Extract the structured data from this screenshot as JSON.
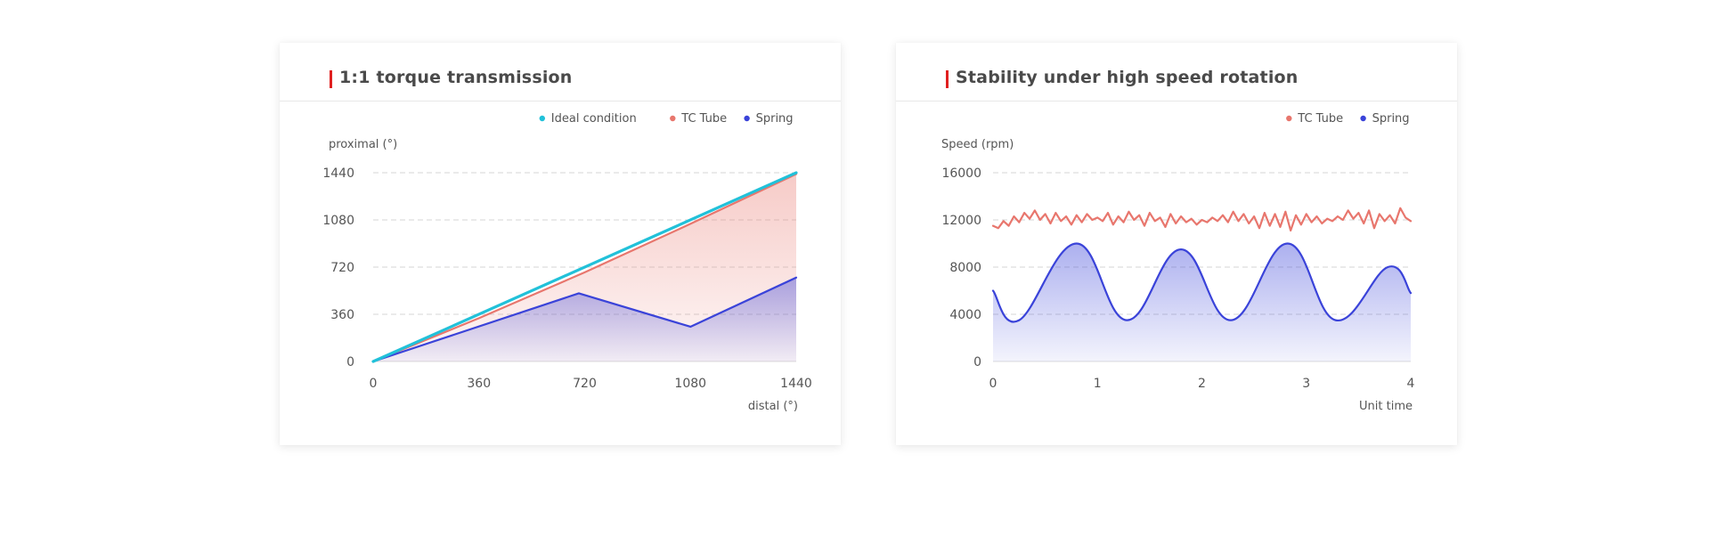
{
  "colors": {
    "cyan": "#21c1d9",
    "red": "#e8766d",
    "blue": "#3a43d9",
    "title_mark": "#e02020",
    "grid": "#d6d6d6",
    "text": "#555555"
  },
  "chart_data": [
    {
      "type": "area",
      "title": "1:1 torque transmission",
      "ylabel": "proximal  (°)",
      "xlabel": "distal  (°)",
      "xlim": [
        0,
        1440
      ],
      "ylim": [
        0,
        1440
      ],
      "x_ticks": [
        "0",
        "360",
        "720",
        "1080",
        "1440"
      ],
      "y_ticks": [
        "0",
        "360",
        "720",
        "1080",
        "1440"
      ],
      "legend": [
        "Ideal condition",
        "TC Tube",
        "Spring"
      ],
      "legend_position": "top-right",
      "grid": true,
      "series": [
        {
          "name": "Ideal condition",
          "color": "#21c1d9",
          "fill": false,
          "x": [
            0,
            1440
          ],
          "y": [
            0,
            1440
          ]
        },
        {
          "name": "TC Tube",
          "color": "#e8766d",
          "fill": true,
          "x": [
            0,
            360,
            720,
            1080,
            1440
          ],
          "y": [
            0,
            330,
            680,
            1050,
            1430
          ]
        },
        {
          "name": "Spring",
          "color": "#3a43d9",
          "fill": true,
          "x": [
            0,
            700,
            1080,
            1440
          ],
          "y": [
            0,
            520,
            265,
            640
          ]
        }
      ]
    },
    {
      "type": "area",
      "title": "Stability under high speed rotation",
      "ylabel": "Speed (rpm)",
      "xlabel": "Unit time",
      "xlim": [
        0,
        4
      ],
      "ylim": [
        0,
        16000
      ],
      "x_ticks": [
        "0",
        "1",
        "2",
        "3",
        "4"
      ],
      "y_ticks": [
        "0",
        "4000",
        "8000",
        "12000",
        "16000"
      ],
      "legend": [
        "TC Tube",
        "Spring"
      ],
      "legend_position": "top-right",
      "grid": true,
      "series": [
        {
          "name": "TC Tube",
          "color": "#e8766d",
          "fill": false,
          "x": [
            0,
            0.05,
            0.1,
            0.15,
            0.2,
            0.25,
            0.3,
            0.35,
            0.4,
            0.45,
            0.5,
            0.55,
            0.6,
            0.65,
            0.7,
            0.75,
            0.8,
            0.85,
            0.9,
            0.95,
            1.0,
            1.05,
            1.1,
            1.15,
            1.2,
            1.25,
            1.3,
            1.35,
            1.4,
            1.45,
            1.5,
            1.55,
            1.6,
            1.65,
            1.7,
            1.75,
            1.8,
            1.85,
            1.9,
            1.95,
            2.0,
            2.05,
            2.1,
            2.15,
            2.2,
            2.25,
            2.3,
            2.35,
            2.4,
            2.45,
            2.5,
            2.55,
            2.6,
            2.65,
            2.7,
            2.75,
            2.8,
            2.85,
            2.9,
            2.95,
            3.0,
            3.05,
            3.1,
            3.15,
            3.2,
            3.25,
            3.3,
            3.35,
            3.4,
            3.45,
            3.5,
            3.55,
            3.6,
            3.65,
            3.7,
            3.75,
            3.8,
            3.85,
            3.9,
            3.95,
            4.0
          ],
          "y": [
            11500,
            11300,
            11900,
            11500,
            12300,
            11800,
            12600,
            12100,
            12800,
            12000,
            12500,
            11700,
            12600,
            11900,
            12300,
            11600,
            12400,
            11800,
            12500,
            12000,
            12200,
            11900,
            12600,
            11600,
            12300,
            11800,
            12700,
            12000,
            12400,
            11500,
            12600,
            11900,
            12200,
            11400,
            12500,
            11700,
            12300,
            11800,
            12100,
            11600,
            12000,
            11800,
            12200,
            11900,
            12400,
            11800,
            12700,
            11900,
            12500,
            11700,
            12300,
            11300,
            12600,
            11500,
            12500,
            11400,
            12700,
            11100,
            12400,
            11600,
            12500,
            11800,
            12300,
            11700,
            12100,
            11900,
            12300,
            12000,
            12800,
            12100,
            12600,
            11700,
            12800,
            11300,
            12500,
            11900,
            12400,
            11700,
            13000,
            12200,
            11900
          ]
        },
        {
          "name": "Spring",
          "color": "#3a43d9",
          "fill": true,
          "x": [
            0,
            0.25,
            0.8,
            1.28,
            1.8,
            2.28,
            2.82,
            3.28,
            3.78,
            4.0
          ],
          "y": [
            6000,
            3500,
            10000,
            3500,
            9500,
            3500,
            10000,
            3500,
            8000,
            5800
          ]
        }
      ]
    }
  ]
}
